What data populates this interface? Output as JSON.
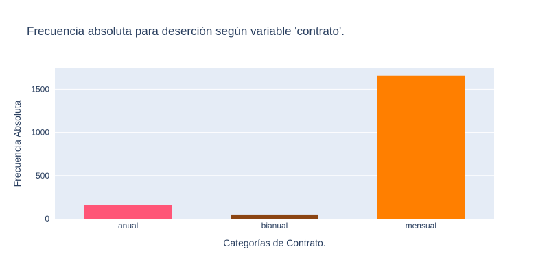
{
  "chart_data": {
    "type": "bar",
    "title": "Frecuencia absoluta para deserción según variable 'contrato'.",
    "xlabel": "Categorías de Contrato.",
    "ylabel": "Frecuencia Absoluta",
    "categories": [
      "anual",
      "bianual",
      "mensual"
    ],
    "values": [
      166,
      48,
      1655
    ],
    "bar_colors": [
      "#FF5577",
      "#8B4513",
      "#FF7F00"
    ],
    "ylim": [
      0,
      1740
    ],
    "yticks": [
      0,
      500,
      1000,
      1500
    ],
    "ytick_labels": [
      "0",
      "500",
      "1000",
      "1500"
    ],
    "grid": true,
    "legend": "none",
    "plot_background": "#E5ECF6",
    "grid_color": "#FFFFFF",
    "text_color": "#2A3F5F"
  }
}
